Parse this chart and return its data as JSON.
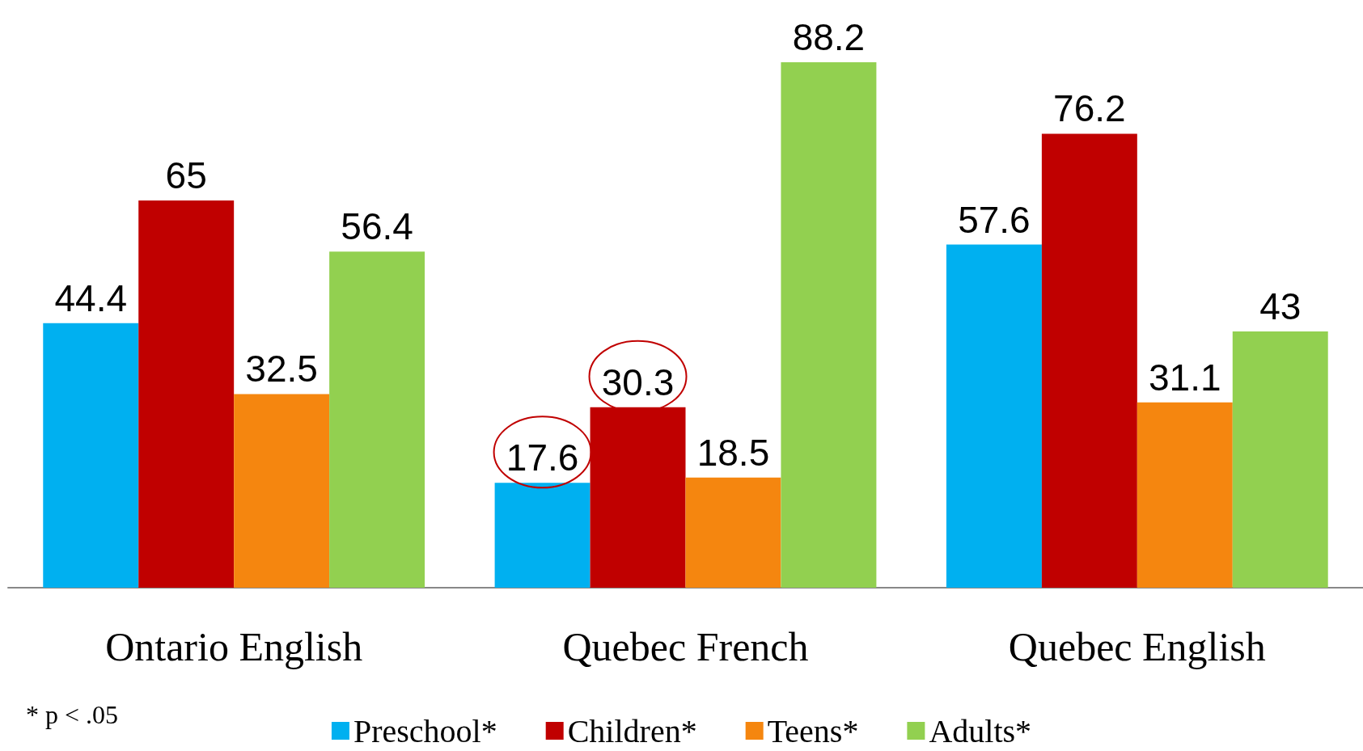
{
  "chart_data": {
    "type": "bar",
    "categories": [
      "Ontario English",
      "Quebec French",
      "Quebec English"
    ],
    "series": [
      {
        "name": "Preschool*",
        "color": "#00b0f0",
        "values": [
          44.4,
          17.6,
          57.6
        ]
      },
      {
        "name": "Children*",
        "color": "#c00000",
        "values": [
          65,
          30.3,
          76.2
        ]
      },
      {
        "name": "Teens*",
        "color": "#f5860f",
        "values": [
          32.5,
          18.5,
          31.1
        ]
      },
      {
        "name": "Adults*",
        "color": "#92d050",
        "values": [
          56.4,
          88.2,
          43
        ]
      }
    ],
    "data_labels": true,
    "legend": "bottom",
    "annotations": [
      "* p < .05"
    ]
  }
}
